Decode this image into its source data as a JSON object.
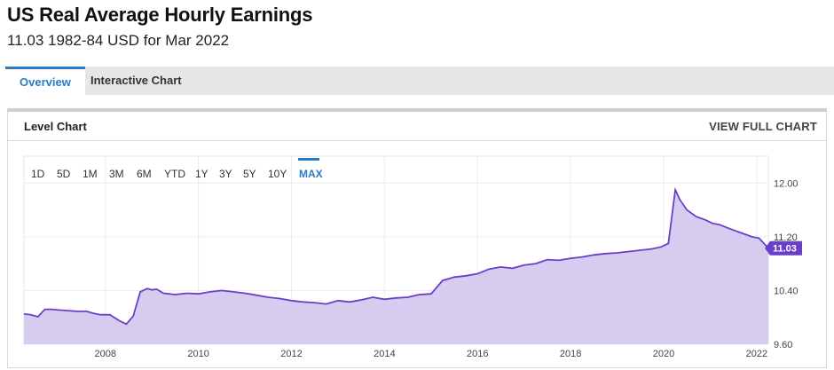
{
  "header": {
    "title": "US Real Average Hourly Earnings",
    "subtitle": "11.03 1982-84 USD for Mar 2022"
  },
  "tabs": [
    {
      "label": "Overview",
      "active": true
    },
    {
      "label": "Interactive Chart",
      "active": false
    }
  ],
  "panel": {
    "title": "Level Chart",
    "view_full_label": "VIEW FULL CHART"
  },
  "range_buttons": [
    {
      "label": "1D"
    },
    {
      "label": "5D"
    },
    {
      "label": "1M"
    },
    {
      "label": "3M"
    },
    {
      "label": "6M"
    },
    {
      "label": "YTD"
    },
    {
      "label": "1Y"
    },
    {
      "label": "3Y"
    },
    {
      "label": "5Y"
    },
    {
      "label": "10Y"
    },
    {
      "label": "MAX",
      "active": true
    }
  ],
  "colors": {
    "line": "#6a3fc8",
    "fill": "#d6ccf0",
    "badge": "#6a3fc8",
    "accent": "#2a7ac8"
  },
  "chart_data": {
    "type": "area",
    "title": "",
    "xlabel": "",
    "ylabel": "",
    "x_ticks": [
      "2008",
      "2010",
      "2012",
      "2014",
      "2016",
      "2018",
      "2020",
      "2022"
    ],
    "y_ticks": [
      "12.00",
      "11.20",
      "10.40",
      "9.60"
    ],
    "ylim": [
      9.6,
      12.4
    ],
    "xlim": [
      2006.25,
      2022.25
    ],
    "last_value_label": "11.03",
    "series": [
      {
        "name": "",
        "x": [
          2006.25,
          2006.4,
          2006.55,
          2006.7,
          2006.85,
          2007.0,
          2007.2,
          2007.4,
          2007.6,
          2007.75,
          2007.9,
          2008.1,
          2008.3,
          2008.45,
          2008.6,
          2008.75,
          2008.9,
          2009.0,
          2009.1,
          2009.25,
          2009.5,
          2009.75,
          2010.0,
          2010.25,
          2010.5,
          2010.75,
          2011.0,
          2011.25,
          2011.5,
          2011.75,
          2012.0,
          2012.25,
          2012.5,
          2012.75,
          2013.0,
          2013.25,
          2013.5,
          2013.75,
          2014.0,
          2014.25,
          2014.5,
          2014.75,
          2015.0,
          2015.25,
          2015.5,
          2015.75,
          2016.0,
          2016.25,
          2016.5,
          2016.75,
          2017.0,
          2017.25,
          2017.5,
          2017.75,
          2018.0,
          2018.25,
          2018.5,
          2018.75,
          2019.0,
          2019.25,
          2019.5,
          2019.75,
          2019.95,
          2020.1,
          2020.25,
          2020.35,
          2020.5,
          2020.7,
          2020.9,
          2021.05,
          2021.2,
          2021.35,
          2021.5,
          2021.7,
          2021.9,
          2022.05,
          2022.25
        ],
        "values": [
          10.05,
          10.04,
          10.01,
          10.12,
          10.12,
          10.11,
          10.1,
          10.09,
          10.09,
          10.06,
          10.04,
          10.04,
          9.95,
          9.9,
          10.02,
          10.38,
          10.43,
          10.41,
          10.42,
          10.36,
          10.34,
          10.36,
          10.35,
          10.38,
          10.4,
          10.38,
          10.36,
          10.33,
          10.3,
          10.28,
          10.25,
          10.23,
          10.22,
          10.2,
          10.25,
          10.23,
          10.26,
          10.3,
          10.27,
          10.29,
          10.3,
          10.34,
          10.35,
          10.55,
          10.6,
          10.62,
          10.65,
          10.72,
          10.75,
          10.73,
          10.78,
          10.8,
          10.86,
          10.85,
          10.88,
          10.9,
          10.93,
          10.95,
          10.96,
          10.98,
          11.0,
          11.02,
          11.05,
          11.1,
          11.9,
          11.75,
          11.6,
          11.5,
          11.45,
          11.4,
          11.38,
          11.34,
          11.3,
          11.25,
          11.2,
          11.18,
          11.03
        ]
      }
    ],
    "grid": true
  }
}
